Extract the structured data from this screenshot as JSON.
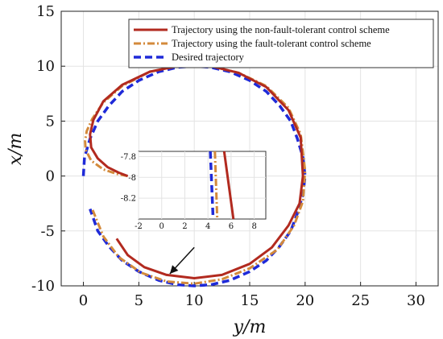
{
  "chart_data": {
    "type": "line",
    "xlabel": "y/m",
    "ylabel": "x/m",
    "xlim": [
      -2,
      32
    ],
    "ylim": [
      -10,
      15
    ],
    "xticks": [
      0,
      5,
      10,
      15,
      20,
      25,
      30
    ],
    "yticks": [
      -10,
      -5,
      0,
      5,
      10,
      15
    ],
    "grid": true,
    "legend_position": "top-right",
    "colors": {
      "nonft": "#b22a1f",
      "ft": "#d38a3b",
      "desired": "#1f2ad8"
    },
    "series": [
      {
        "name": "Trajectory using the non-fault-tolerant control scheme",
        "style": "solid",
        "x": [
          4,
          3.2,
          2.2,
          1.3,
          0.7,
          0.6,
          0.9,
          1.8,
          3.5,
          6,
          8.5,
          10,
          11.5,
          14,
          16.5,
          18.5,
          19.6,
          19.8,
          19.5,
          18.5,
          17,
          15,
          12.5,
          10,
          7.5,
          5.5,
          4,
          3
        ],
        "y": [
          0,
          0.3,
          0.8,
          1.6,
          2.6,
          3.8,
          5.1,
          6.8,
          8.3,
          9.5,
          10,
          10.1,
          10,
          9.4,
          8.1,
          6,
          3.5,
          0,
          -2.5,
          -4.5,
          -6.5,
          -8,
          -9,
          -9.3,
          -9,
          -8.3,
          -7.2,
          -5.7
        ]
      },
      {
        "name": "Trajectory using the fault-tolerant control scheme",
        "style": "dash-dot",
        "x": [
          4,
          3,
          1.8,
          0.7,
          0.2,
          0.15,
          0.3,
          0.8,
          1.8,
          3.5,
          6,
          8.5,
          10,
          11.5,
          14,
          16.5,
          18.5,
          19.6,
          20,
          19.8,
          19,
          17.5,
          15,
          12.5,
          10,
          7.5,
          5.2,
          3.2,
          1.8,
          0.8
        ],
        "y": [
          0,
          0.2,
          0.6,
          1.4,
          2.4,
          3.2,
          4.1,
          5.2,
          6.7,
          8.2,
          9.5,
          10,
          10.05,
          10,
          9.4,
          8.2,
          6.2,
          3.8,
          0.5,
          -2.3,
          -4.5,
          -6.7,
          -8.4,
          -9.4,
          -9.8,
          -9.6,
          -8.8,
          -7.4,
          -5.5,
          -3
        ]
      },
      {
        "name": "Desired trajectory",
        "style": "dashed",
        "x": [
          0,
          0.1,
          0.6,
          1.3,
          2.3,
          3.5,
          5,
          6.8,
          8.5,
          10,
          11.5,
          13.2,
          15,
          16.5,
          17.7,
          18.7,
          19.3,
          19.8,
          20,
          19.8,
          19.3,
          18.7,
          17.7,
          16.5,
          15,
          13.2,
          11.5,
          10,
          8.5,
          6.8,
          5,
          3.5,
          2.3,
          1.3,
          0.6
        ],
        "y": [
          0,
          1.7,
          3.4,
          5,
          6.4,
          7.7,
          8.7,
          9.5,
          9.9,
          10,
          9.9,
          9.5,
          8.7,
          7.7,
          6.4,
          5,
          3.4,
          1.7,
          0,
          -1.7,
          -3.4,
          -5,
          -6.4,
          -7.7,
          -8.7,
          -9.5,
          -9.9,
          -10,
          -9.9,
          -9.5,
          -8.7,
          -7.7,
          -6.4,
          -5,
          -3
        ]
      }
    ],
    "inset": {
      "xlim": [
        -2,
        9
      ],
      "ylim": [
        -8.4,
        -7.75
      ],
      "xticks": [
        -2,
        0,
        2,
        4,
        6,
        8
      ],
      "ytick_labels": [
        "-7.8",
        "-8",
        "-8.2"
      ],
      "yticks": [
        -7.8,
        -8,
        -8.2
      ],
      "series": [
        {
          "x": [
            5.4,
            6.2
          ],
          "y": [
            -7.75,
            -8.4
          ]
        },
        {
          "x": [
            4.6,
            4.8
          ],
          "y": [
            -7.75,
            -8.4
          ]
        },
        {
          "x": [
            4.2,
            4.45
          ],
          "y": [
            -7.75,
            -8.4
          ]
        }
      ]
    },
    "arrow": {
      "from": [
        10,
        -6.5
      ],
      "to": [
        7.8,
        -8.9
      ]
    }
  }
}
